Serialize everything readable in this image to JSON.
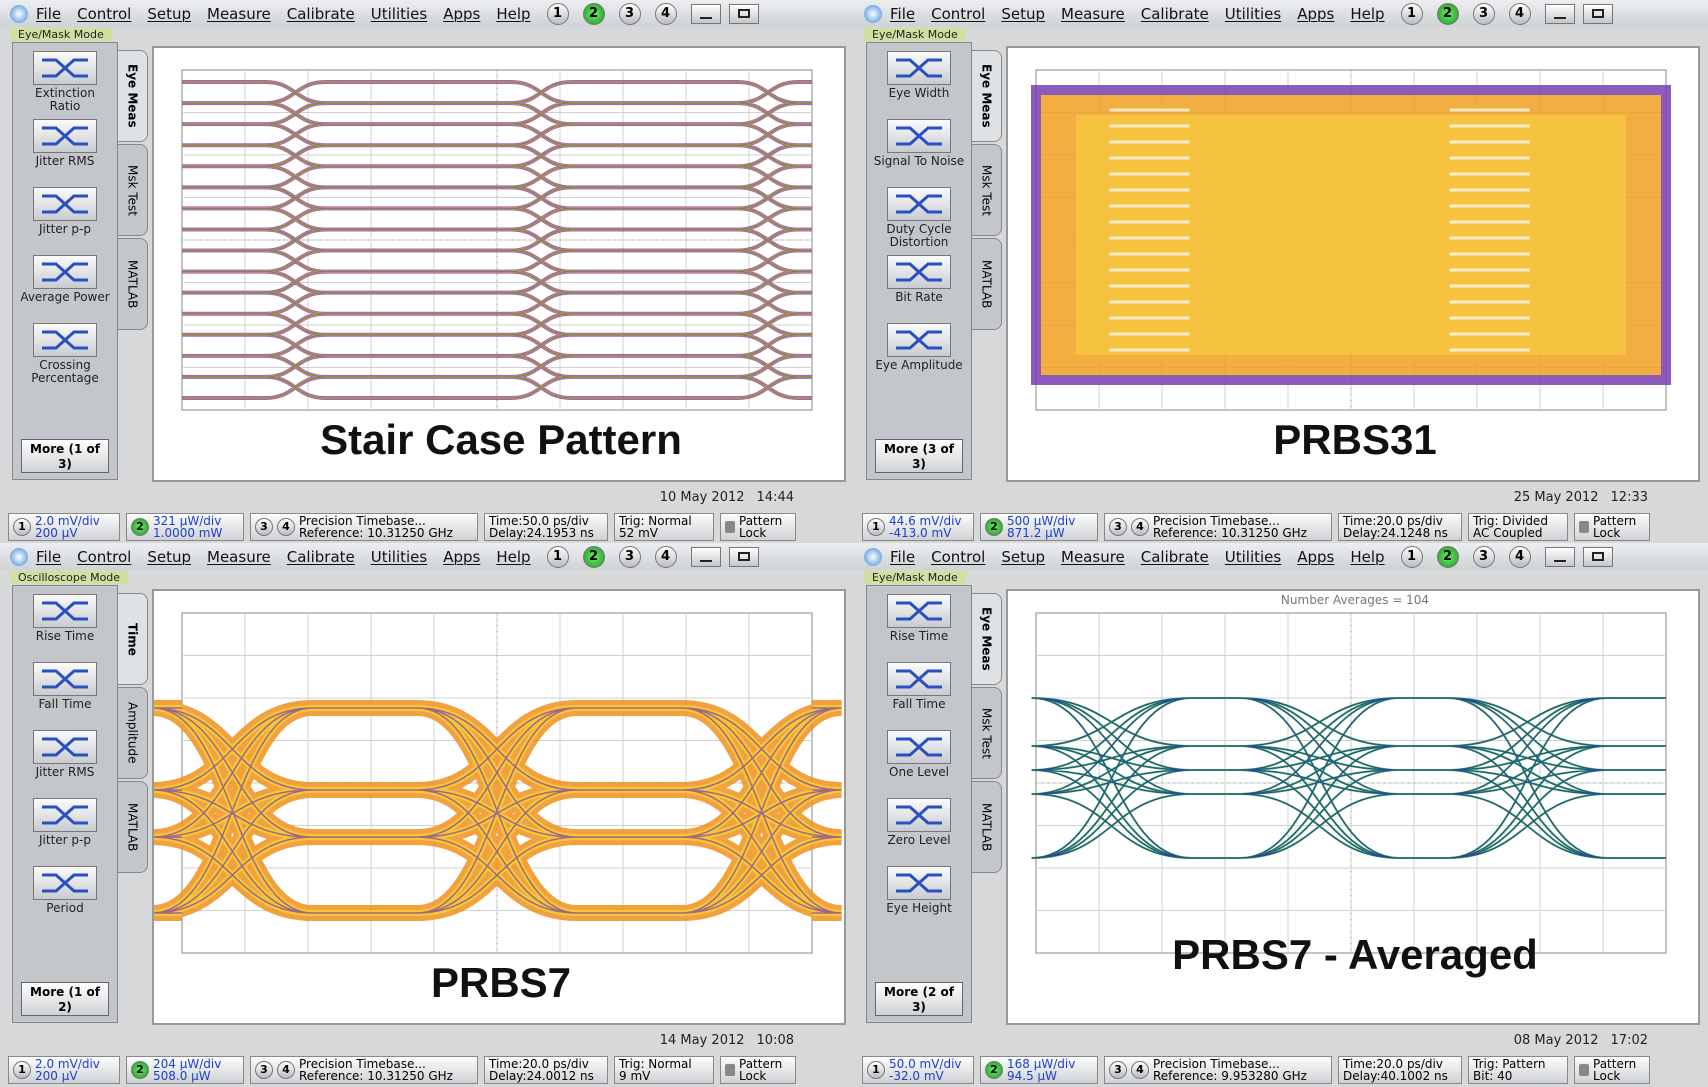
{
  "menu": [
    "File",
    "Control",
    "Setup",
    "Measure",
    "Calibrate",
    "Utilities",
    "Apps",
    "Help"
  ],
  "channels": [
    "1",
    "2",
    "3",
    "4"
  ],
  "panels": [
    {
      "mode": "Eye/Mask Mode",
      "buttons": [
        "Extinction Ratio",
        "Jitter RMS",
        "Jitter p-p",
        "Average Power",
        "Crossing Percentage"
      ],
      "more": "More (1 of 3)",
      "tabs": [
        "Eye Meas",
        "Msk Test",
        "MATLAB"
      ],
      "caption": "Stair Case Pattern",
      "date": "10 May 2012",
      "time": "14:44",
      "status": {
        "ch1": [
          "2.0 mV/div",
          "200 µV"
        ],
        "ch2": [
          "321 µW/div",
          "1.0000 mW"
        ],
        "timebase": [
          "Precision Timebase...",
          "Reference: 10.31250 GHz"
        ],
        "timing": [
          "Time:50.0 ps/div",
          "Delay:24.1953 ns"
        ],
        "trigger": [
          "Trig: Normal",
          "52 mV"
        ],
        "lock": [
          "Pattern",
          "Lock"
        ]
      }
    },
    {
      "mode": "Eye/Mask Mode",
      "buttons": [
        "Eye Width",
        "Signal To Noise",
        "Duty Cycle Distortion",
        "Bit Rate",
        "Eye Amplitude"
      ],
      "more": "More (3 of 3)",
      "tabs": [
        "Eye Meas",
        "Msk Test",
        "MATLAB"
      ],
      "caption": "PRBS31",
      "date": "25 May 2012",
      "time": "12:33",
      "status": {
        "ch1": [
          "44.6 mV/div",
          "-413.0 mV"
        ],
        "ch2": [
          "500 µW/div",
          "871.2 µW"
        ],
        "timebase": [
          "Precision Timebase...",
          "Reference: 10.31250 GHz"
        ],
        "timing": [
          "Time:20.0 ps/div",
          "Delay:24.1248 ns"
        ],
        "trigger": [
          "Trig: Divided",
          "AC Coupled"
        ],
        "lock": [
          "Pattern",
          "Lock"
        ]
      }
    },
    {
      "mode": "Oscilloscope Mode",
      "buttons": [
        "Rise Time",
        "Fall Time",
        "Jitter RMS",
        "Jitter p-p",
        "Period"
      ],
      "more": "More (1 of 2)",
      "tabs": [
        "Time",
        "Amplitude",
        "MATLAB"
      ],
      "caption": "PRBS7",
      "date": "14 May 2012",
      "time": "10:08",
      "status": {
        "ch1": [
          "2.0 mV/div",
          "200 µV"
        ],
        "ch2": [
          "204 µW/div",
          "508.0 µW"
        ],
        "timebase": [
          "Precision Timebase...",
          "Reference: 10.31250 GHz"
        ],
        "timing": [
          "Time:20.0 ps/div",
          "Delay:24.0012 ns"
        ],
        "trigger": [
          "Trig: Normal",
          "9 mV"
        ],
        "lock": [
          "Pattern",
          "Lock"
        ]
      }
    },
    {
      "mode": "Eye/Mask Mode",
      "buttons": [
        "Rise Time",
        "Fall Time",
        "One Level",
        "Zero Level",
        "Eye Height"
      ],
      "more": "More (2 of 3)",
      "tabs": [
        "Eye Meas",
        "Msk Test",
        "MATLAB"
      ],
      "caption": "PRBS7 - Averaged",
      "annotation": "Number Averages = 104",
      "date": "08 May 2012",
      "time": "17:02",
      "status": {
        "ch1": [
          "50.0 mV/div",
          "-32.0 mV"
        ],
        "ch2": [
          "168 µW/div",
          "94.5 µW"
        ],
        "timebase": [
          "Precision Timebase...",
          "Reference: 9.953280 GHz"
        ],
        "timing": [
          "Time:20.0 ps/div",
          "Delay:40.1002 ns"
        ],
        "trigger": [
          "Trig: Pattern",
          "Bit: 40"
        ],
        "lock": [
          "Pattern",
          "Lock"
        ]
      }
    }
  ]
}
